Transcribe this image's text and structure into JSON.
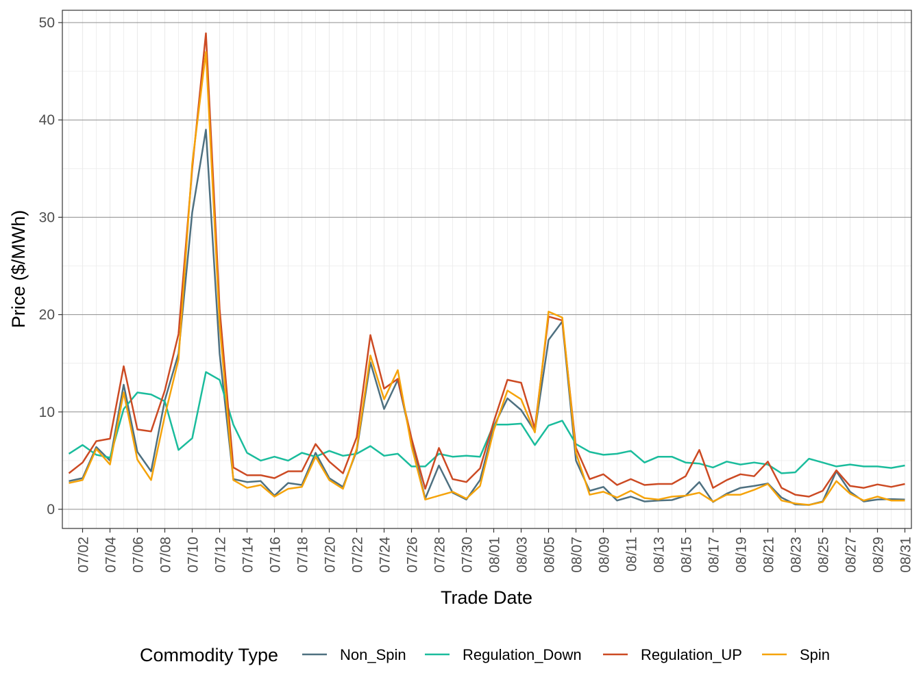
{
  "chart_data": {
    "type": "line",
    "title": "",
    "xlabel": "Trade Date",
    "ylabel": "Price ($/MWh)",
    "ylim": [
      -2,
      51
    ],
    "yticks": [
      0,
      10,
      20,
      30,
      40,
      50
    ],
    "grid": true,
    "legend_position": "bottom",
    "legend_title": "Commodity Type",
    "x": [
      "07/01",
      "07/02",
      "07/03",
      "07/04",
      "07/05",
      "07/06",
      "07/07",
      "07/08",
      "07/09",
      "07/10",
      "07/11",
      "07/12",
      "07/13",
      "07/14",
      "07/15",
      "07/16",
      "07/17",
      "07/18",
      "07/19",
      "07/20",
      "07/21",
      "07/22",
      "07/23",
      "07/24",
      "07/25",
      "07/26",
      "07/27",
      "07/28",
      "07/29",
      "07/30",
      "07/31",
      "08/01",
      "08/02",
      "08/03",
      "08/04",
      "08/05",
      "08/06",
      "08/07",
      "08/08",
      "08/09",
      "08/10",
      "08/11",
      "08/12",
      "08/13",
      "08/14",
      "08/15",
      "08/16",
      "08/17",
      "08/18",
      "08/19",
      "08/20",
      "08/21",
      "08/22",
      "08/23",
      "08/24",
      "08/25",
      "08/26",
      "08/27",
      "08/28",
      "08/29",
      "08/30",
      "08/31"
    ],
    "x_tick_labels": [
      "07/02",
      "07/04",
      "07/06",
      "07/08",
      "07/10",
      "07/12",
      "07/14",
      "07/16",
      "07/18",
      "07/20",
      "07/22",
      "07/24",
      "07/26",
      "07/28",
      "07/30",
      "08/01",
      "08/03",
      "08/05",
      "08/07",
      "08/09",
      "08/11",
      "08/13",
      "08/15",
      "08/17",
      "08/19",
      "08/21",
      "08/23",
      "08/25",
      "08/27",
      "08/29",
      "08/31"
    ],
    "series": [
      {
        "name": "Non_Spin",
        "color": "#4e7080",
        "values": [
          2.9,
          3.2,
          6.4,
          5.0,
          12.8,
          5.9,
          3.9,
          11.2,
          16.0,
          30.5,
          39.0,
          16.0,
          3.1,
          2.8,
          2.9,
          1.4,
          2.7,
          2.5,
          5.8,
          3.2,
          2.3,
          6.0,
          15.1,
          10.3,
          13.3,
          7.0,
          1.1,
          4.5,
          1.7,
          1.0,
          3.0,
          8.5,
          11.4,
          10.2,
          8.0,
          17.4,
          19.3,
          5.0,
          1.9,
          2.3,
          0.9,
          1.3,
          0.8,
          0.9,
          0.95,
          1.4,
          2.8,
          0.75,
          1.6,
          2.2,
          2.4,
          2.65,
          1.2,
          0.5,
          0.45,
          0.8,
          3.9,
          1.8,
          0.8,
          1.0,
          1.05,
          1.0
        ]
      },
      {
        "name": "Regulation_Down",
        "color": "#1abc9c",
        "values": [
          5.7,
          6.6,
          5.6,
          5.3,
          10.3,
          12.0,
          11.8,
          11.1,
          6.1,
          7.3,
          14.1,
          13.3,
          8.7,
          5.8,
          5.0,
          5.4,
          5.0,
          5.8,
          5.4,
          6.0,
          5.5,
          5.7,
          6.5,
          5.5,
          5.7,
          4.4,
          4.4,
          5.7,
          5.4,
          5.5,
          5.4,
          8.7,
          8.7,
          8.8,
          6.6,
          8.6,
          9.1,
          6.7,
          5.9,
          5.6,
          5.7,
          6.0,
          4.8,
          5.4,
          5.4,
          4.8,
          4.7,
          4.3,
          4.9,
          4.6,
          4.8,
          4.6,
          3.7,
          3.8,
          5.2,
          4.8,
          4.4,
          4.6,
          4.4,
          4.4,
          4.25,
          4.5
        ]
      },
      {
        "name": "Regulation_UP",
        "color": "#cc4a23",
        "values": [
          3.7,
          4.8,
          7.0,
          7.25,
          14.7,
          8.2,
          8.0,
          12.2,
          18.0,
          35.0,
          48.9,
          20.6,
          4.3,
          3.5,
          3.5,
          3.2,
          3.9,
          3.9,
          6.7,
          4.9,
          3.7,
          7.4,
          17.9,
          12.4,
          13.4,
          7.3,
          2.1,
          6.3,
          3.1,
          2.8,
          4.2,
          9.0,
          13.3,
          13.0,
          8.3,
          19.8,
          19.4,
          6.3,
          3.1,
          3.6,
          2.5,
          3.1,
          2.5,
          2.6,
          2.6,
          3.4,
          6.1,
          2.2,
          3.0,
          3.6,
          3.4,
          4.9,
          2.2,
          1.5,
          1.3,
          1.9,
          4.0,
          2.4,
          2.2,
          2.55,
          2.3,
          2.6
        ]
      },
      {
        "name": "Spin",
        "color": "#f5a30a",
        "values": [
          2.7,
          3.0,
          6.2,
          4.6,
          12.0,
          5.1,
          3.0,
          9.6,
          15.4,
          35.5,
          47.0,
          19.0,
          3.0,
          2.2,
          2.5,
          1.3,
          2.1,
          2.3,
          5.4,
          3.0,
          2.1,
          6.2,
          15.8,
          11.3,
          14.3,
          6.5,
          1.0,
          1.4,
          1.8,
          1.1,
          2.4,
          8.1,
          12.2,
          11.3,
          7.9,
          20.3,
          19.7,
          5.8,
          1.5,
          1.8,
          1.2,
          1.9,
          1.15,
          1.0,
          1.3,
          1.4,
          1.7,
          0.8,
          1.5,
          1.5,
          2.0,
          2.6,
          0.9,
          0.6,
          0.45,
          0.75,
          2.9,
          1.6,
          0.9,
          1.3,
          0.9,
          0.9
        ]
      }
    ]
  }
}
